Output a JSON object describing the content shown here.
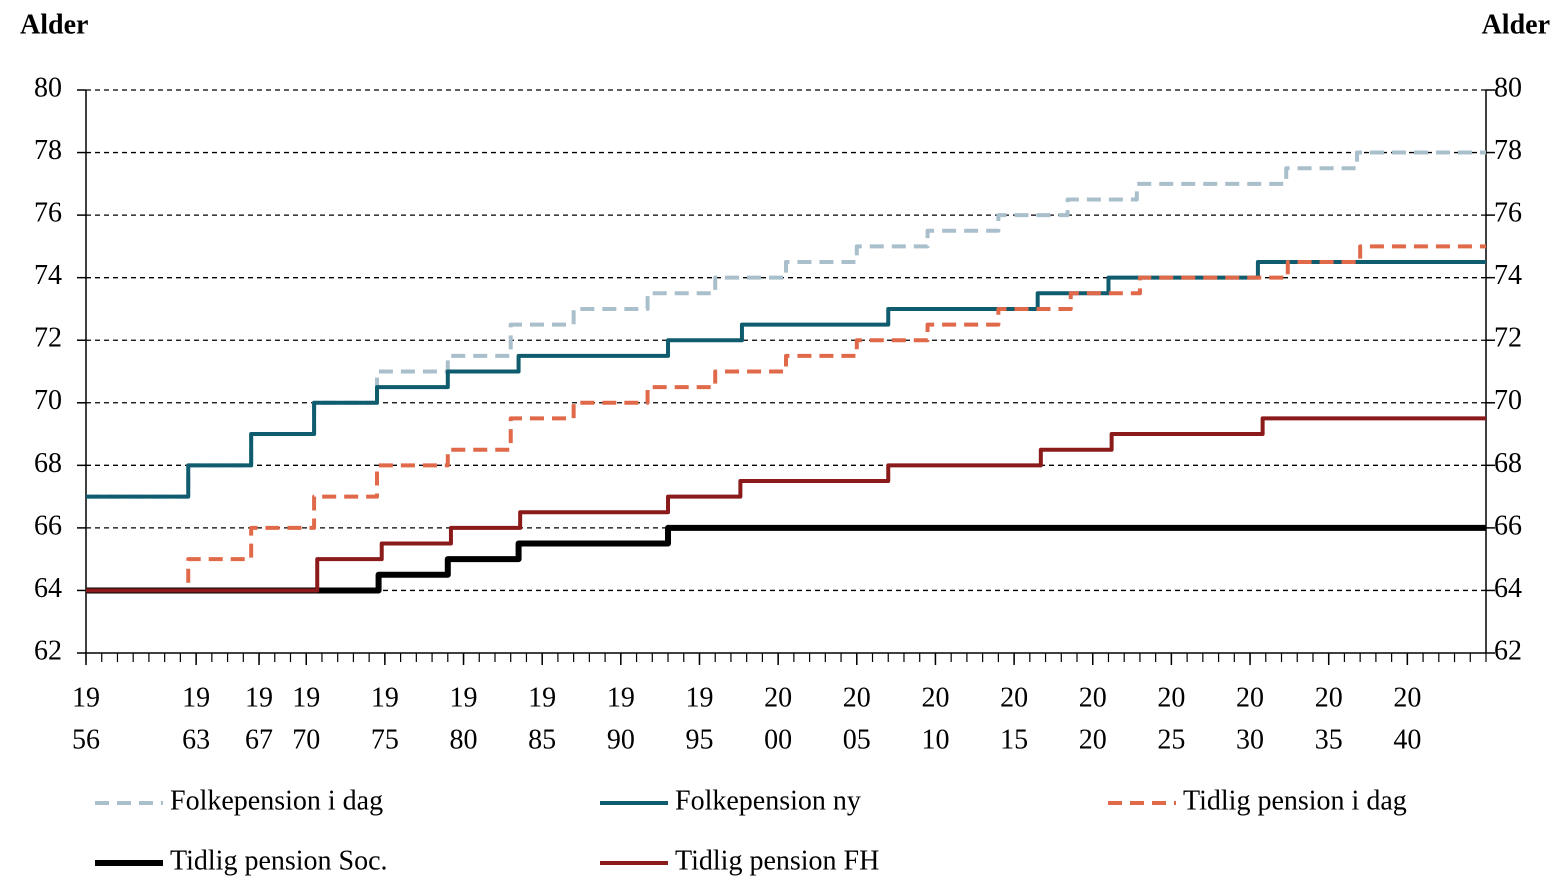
{
  "chart_data": {
    "type": "step",
    "ylabel": "Alder",
    "y2label": "Alder",
    "xlim": [
      1956,
      2045
    ],
    "xticks": [
      {
        "value": 1956,
        "label": [
          "19",
          "56"
        ]
      },
      {
        "value": 1963,
        "label": [
          "19",
          "63"
        ]
      },
      {
        "value": 1967,
        "label": [
          "19",
          "67"
        ]
      },
      {
        "value": 1970,
        "label": [
          "19",
          "70"
        ]
      },
      {
        "value": 1975,
        "label": [
          "19",
          "75"
        ]
      },
      {
        "value": 1980,
        "label": [
          "19",
          "80"
        ]
      },
      {
        "value": 1985,
        "label": [
          "19",
          "85"
        ]
      },
      {
        "value": 1990,
        "label": [
          "19",
          "90"
        ]
      },
      {
        "value": 1995,
        "label": [
          "19",
          "95"
        ]
      },
      {
        "value": 2000,
        "label": [
          "20",
          "00"
        ]
      },
      {
        "value": 2005,
        "label": [
          "20",
          "05"
        ]
      },
      {
        "value": 2010,
        "label": [
          "20",
          "10"
        ]
      },
      {
        "value": 2015,
        "label": [
          "20",
          "15"
        ]
      },
      {
        "value": 2020,
        "label": [
          "20",
          "20"
        ]
      },
      {
        "value": 2025,
        "label": [
          "20",
          "25"
        ]
      },
      {
        "value": 2030,
        "label": [
          "20",
          "30"
        ]
      },
      {
        "value": 2035,
        "label": [
          "20",
          "35"
        ]
      },
      {
        "value": 2040,
        "label": [
          "20",
          "40"
        ]
      }
    ],
    "ylim": [
      62,
      80
    ],
    "yticks": [
      62,
      64,
      66,
      68,
      70,
      72,
      74,
      76,
      78,
      80
    ],
    "y2lim": [
      62,
      80
    ],
    "y2ticks": [
      62,
      64,
      66,
      68,
      70,
      72,
      74,
      76,
      78,
      80
    ],
    "grid": true,
    "legend": "bottom",
    "series": [
      {
        "name": "Folkepension i dag",
        "color": "#a9bfcc",
        "dashed": true,
        "x": [
          1956,
          1962.5,
          1966.5,
          1970.5,
          1974.5,
          1979,
          1983,
          1987,
          1991.7,
          1996,
          2000.5,
          2005,
          2009.5,
          2014,
          2018.4,
          2022.8,
          2032.3,
          2036.8,
          2045
        ],
        "values": [
          67,
          68,
          69,
          70,
          71,
          71.5,
          72.5,
          73,
          73.5,
          74,
          74.5,
          75,
          75.5,
          76,
          76.5,
          77,
          77.5,
          78,
          78
        ]
      },
      {
        "name": "Folkepension ny",
        "color": "#0e5c6e",
        "dashed": false,
        "x": [
          1956,
          1962.5,
          1966.5,
          1970.5,
          1974.5,
          1979,
          1983.5,
          1993,
          1997.7,
          2007,
          2016.5,
          2021,
          2030.5,
          2045
        ],
        "values": [
          67,
          68,
          69,
          70,
          70.5,
          71,
          71.5,
          72,
          72.5,
          73,
          73.5,
          74,
          74.5,
          74.5
        ]
      },
      {
        "name": "Tidlig pension i dag",
        "color": "#e0694a",
        "dashed": true,
        "x": [
          1956,
          1962.5,
          1966.5,
          1970.5,
          1974.5,
          1979,
          1983,
          1987,
          1991.7,
          1996,
          2000.5,
          2005,
          2009.5,
          2014,
          2018.6,
          2023,
          2032.4,
          2037,
          2045
        ],
        "values": [
          64,
          65,
          66,
          67,
          68,
          68.5,
          69.5,
          70,
          70.5,
          71,
          71.5,
          72,
          72.5,
          73,
          73.5,
          74,
          74.5,
          75,
          75
        ]
      },
      {
        "name": "Tidlig pension Soc.",
        "color": "#000000",
        "dashed": false,
        "width": 6,
        "x": [
          1956,
          1974.6,
          1979,
          1983.5,
          1993,
          2045
        ],
        "values": [
          64,
          64.5,
          65,
          65.5,
          66,
          66
        ]
      },
      {
        "name": "Tidlig pension FH",
        "color": "#8b1a1a",
        "dashed": false,
        "x": [
          1956,
          1970.7,
          1974.8,
          1979.2,
          1983.6,
          1993,
          1997.6,
          2007,
          2016.7,
          2021.2,
          2030.8,
          2045
        ],
        "values": [
          64,
          65,
          65.5,
          66,
          66.5,
          67,
          67.5,
          68,
          68.5,
          69,
          69.5,
          69.5
        ]
      }
    ]
  }
}
